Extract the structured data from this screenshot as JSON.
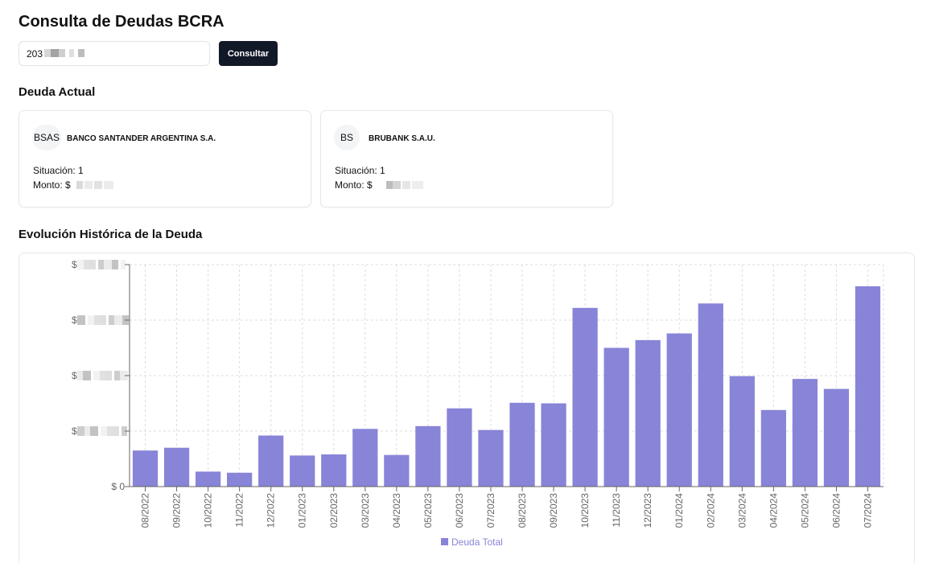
{
  "header": {
    "title": "Consulta de Deudas BCRA"
  },
  "search": {
    "value": "203",
    "button_label": "Consultar"
  },
  "current_debt": {
    "title": "Deuda Actual",
    "cards": [
      {
        "initials": "BSAS",
        "bank_name": "BANCO SANTANDER ARGENTINA S.A.",
        "situation_label": "Situación: 1",
        "amount_label": "Monto: $"
      },
      {
        "initials": "BS",
        "bank_name": "BRUBANK S.A.U.",
        "situation_label": "Situación: 1",
        "amount_label": "Monto: $"
      }
    ]
  },
  "history": {
    "title": "Evolución Histórica de la Deuda"
  },
  "colors": {
    "bar": "#8884d8",
    "primary_button": "#111827",
    "grid": "#dddddd"
  },
  "chart_data": {
    "type": "bar",
    "categories": [
      "08/2022",
      "09/2022",
      "10/2022",
      "11/2022",
      "12/2022",
      "01/2023",
      "02/2023",
      "03/2023",
      "04/2023",
      "05/2023",
      "06/2023",
      "07/2023",
      "08/2023",
      "09/2023",
      "10/2023",
      "11/2023",
      "12/2023",
      "01/2024",
      "02/2024",
      "03/2024",
      "04/2024",
      "05/2024",
      "06/2024",
      "07/2024"
    ],
    "series": [
      {
        "name": "Deuda Total",
        "values": [
          0.65,
          0.7,
          0.27,
          0.25,
          0.92,
          0.56,
          0.58,
          1.04,
          0.57,
          1.09,
          1.41,
          1.02,
          1.51,
          1.5,
          3.22,
          2.5,
          2.64,
          2.76,
          3.3,
          1.99,
          1.38,
          1.94,
          1.76,
          3.61
        ]
      }
    ],
    "y_tick_labels": [
      "$ 0",
      "$",
      "$",
      "$",
      "$"
    ],
    "ylim": [
      0,
      4
    ],
    "grid": true,
    "legend": "bottom"
  }
}
